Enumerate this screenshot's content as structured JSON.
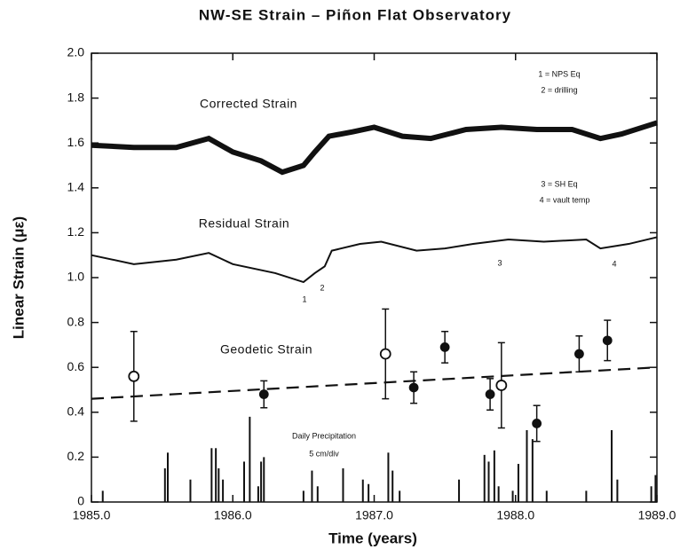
{
  "chart_data": {
    "type": "line",
    "title": "NW-SE Strain  –  Piñon Flat Observatory",
    "xlabel": "Time   (years)",
    "ylabel": "Linear Strain  (με)",
    "xlim": [
      1985.0,
      1989.0
    ],
    "xticks": [
      {
        "value": 1985.0,
        "label": "1985.0"
      },
      {
        "value": 1986.0,
        "label": "1986.0"
      },
      {
        "value": 1987.0,
        "label": "1987.0"
      },
      {
        "value": 1988.0,
        "label": "1988.0"
      },
      {
        "value": 1989.0,
        "label": "1989.0"
      }
    ],
    "ylim": [
      0,
      2.0
    ],
    "yticks": [
      0,
      0.2,
      0.4,
      0.6,
      0.8,
      {
        "value": 1.0,
        "label": "1.0"
      },
      1.2,
      1.4,
      1.6,
      1.8,
      {
        "value": 2.0,
        "label": "2.0"
      }
    ],
    "series": [
      {
        "name": "Corrected Strain",
        "style": "thick",
        "color": "#111",
        "x": [
          1985.0,
          1985.3,
          1985.6,
          1985.83,
          1986.0,
          1986.2,
          1986.35,
          1986.5,
          1986.58,
          1986.68,
          1986.85,
          1987.0,
          1987.2,
          1987.4,
          1987.65,
          1987.9,
          1988.15,
          1988.4,
          1988.6,
          1988.75,
          1989.0
        ],
        "values": [
          1.59,
          1.58,
          1.58,
          1.62,
          1.56,
          1.52,
          1.47,
          1.5,
          1.56,
          1.63,
          1.65,
          1.67,
          1.63,
          1.62,
          1.66,
          1.67,
          1.66,
          1.66,
          1.62,
          1.64,
          1.69
        ]
      },
      {
        "name": "Residual Strain",
        "style": "thin",
        "color": "#111",
        "x": [
          1985.0,
          1985.3,
          1985.6,
          1985.83,
          1986.0,
          1986.3,
          1986.5,
          1986.58,
          1986.65,
          1986.7,
          1986.9,
          1987.05,
          1987.3,
          1987.5,
          1987.7,
          1987.95,
          1988.2,
          1988.5,
          1988.6,
          1988.8,
          1989.0
        ],
        "values": [
          1.1,
          1.06,
          1.08,
          1.11,
          1.06,
          1.02,
          0.98,
          1.02,
          1.05,
          1.12,
          1.15,
          1.16,
          1.12,
          1.13,
          1.15,
          1.17,
          1.16,
          1.17,
          1.13,
          1.15,
          1.18
        ]
      },
      {
        "name": "Geodetic Strain",
        "style": "open",
        "color": "#111",
        "x": [
          1985.3,
          1987.08,
          1987.9
        ],
        "values": [
          0.56,
          0.66,
          0.52
        ],
        "errors": [
          0.2,
          0.2,
          0.19
        ]
      },
      {
        "name": "Geodetic Strain",
        "style": "filled",
        "color": "#111",
        "x": [
          1986.22,
          1987.28,
          1987.5,
          1987.82,
          1988.15,
          1988.45,
          1988.65
        ],
        "values": [
          0.48,
          0.51,
          0.69,
          0.48,
          0.35,
          0.66,
          0.72
        ],
        "errors": [
          0.06,
          0.07,
          0.07,
          0.07,
          0.08,
          0.08,
          0.09
        ]
      },
      {
        "name": "Geodetic Strain",
        "style": "dashed",
        "color": "#111",
        "x": [
          1985.0,
          1989.0
        ],
        "values": [
          0.46,
          0.6
        ]
      },
      {
        "name": "Daily Precipitation",
        "style": "bars",
        "color": "#111",
        "x": [
          1985.08,
          1985.52,
          1985.54,
          1985.7,
          1985.85,
          1985.88,
          1985.9,
          1985.93,
          1986.08,
          1986.12,
          1986.18,
          1986.2,
          1986.22,
          1986.5,
          1986.56,
          1986.6,
          1986.78,
          1986.92,
          1986.96,
          1987.1,
          1987.13,
          1987.18,
          1987.6,
          1987.78,
          1987.81,
          1987.85,
          1987.88,
          1987.98,
          1988.02,
          1988.08,
          1988.12,
          1988.22,
          1988.5,
          1988.68,
          1988.72,
          1988.96,
          1988.99
        ],
        "values": [
          0.05,
          0.15,
          0.22,
          0.1,
          0.24,
          0.24,
          0.15,
          0.1,
          0.18,
          0.38,
          0.07,
          0.18,
          0.2,
          0.05,
          0.14,
          0.07,
          0.15,
          0.1,
          0.08,
          0.22,
          0.14,
          0.05,
          0.1,
          0.21,
          0.18,
          0.23,
          0.07,
          0.05,
          0.17,
          0.32,
          0.28,
          0.05,
          0.05,
          0.32,
          0.1,
          0.07,
          0.12
        ]
      }
    ],
    "annotations": [
      "Corrected Strain",
      "Residual Strain",
      "Geodetic Strain",
      "Daily Precipitation",
      "5 cm/div",
      "1 = NPS Eq",
      "2 = drilling",
      "3 = SH Eq",
      "4 = vault temp",
      "1",
      "2",
      "3",
      "4"
    ]
  }
}
